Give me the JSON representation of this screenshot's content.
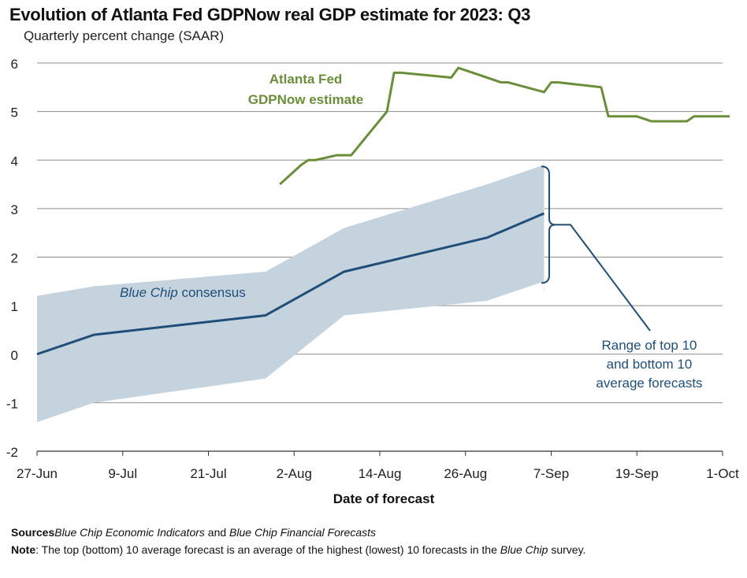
{
  "title": "Evolution of Atlanta Fed GDPNow real GDP estimate for 2023: Q3",
  "subtitle": "Quarterly percent change (SAAR)",
  "chart_data": {
    "type": "line",
    "xlabel": "Date of forecast",
    "ylim": [
      -2,
      6
    ],
    "yticks": [
      -2,
      -1,
      0,
      1,
      2,
      3,
      4,
      5,
      6
    ],
    "xticks": [
      "27-Jun",
      "9-Jul",
      "21-Jul",
      "2-Aug",
      "14-Aug",
      "26-Aug",
      "7-Sep",
      "19-Sep",
      "1-Oct"
    ],
    "xlim_days": [
      0,
      96
    ],
    "grid": true,
    "series": [
      {
        "name": "Atlanta Fed GDPNow estimate",
        "label_lines": [
          "Atlanta Fed",
          "GDPNow estimate"
        ],
        "color": "#6b8e3a",
        "points": [
          [
            "31-Jul",
            3.5
          ],
          [
            "3-Aug",
            3.9
          ],
          [
            "4-Aug",
            4.0
          ],
          [
            "5-Aug",
            4.0
          ],
          [
            "8-Aug",
            4.1
          ],
          [
            "10-Aug",
            4.1
          ],
          [
            "15-Aug",
            5.0
          ],
          [
            "16-Aug",
            5.8
          ],
          [
            "17-Aug",
            5.8
          ],
          [
            "24-Aug",
            5.7
          ],
          [
            "25-Aug",
            5.9
          ],
          [
            "31-Aug",
            5.6
          ],
          [
            "1-Sep",
            5.6
          ],
          [
            "6-Sep",
            5.4
          ],
          [
            "7-Sep",
            5.6
          ],
          [
            "8-Sep",
            5.6
          ],
          [
            "14-Sep",
            5.5
          ],
          [
            "15-Sep",
            4.9
          ],
          [
            "19-Sep",
            4.9
          ],
          [
            "21-Sep",
            4.8
          ],
          [
            "26-Sep",
            4.8
          ],
          [
            "27-Sep",
            4.9
          ],
          [
            "2-Oct",
            4.9
          ]
        ]
      },
      {
        "name": "Blue Chip consensus",
        "label_italic": "Blue Chip",
        "label_rest": " consensus",
        "color": "#1f4e79",
        "points": [
          [
            "27-Jun",
            0.0
          ],
          [
            "5-Jul",
            0.4
          ],
          [
            "29-Jul",
            0.8
          ],
          [
            "9-Aug",
            1.7
          ],
          [
            "29-Aug",
            2.4
          ],
          [
            "6-Sep",
            2.9
          ]
        ]
      }
    ],
    "band": {
      "name": "Range of top 10 and bottom 10 average forecasts",
      "label_lines": [
        "Range of top 10",
        "and bottom 10",
        "average forecasts"
      ],
      "color": "#c5d3de",
      "upper": [
        [
          "27-Jun",
          1.2
        ],
        [
          "5-Jul",
          1.4
        ],
        [
          "29-Jul",
          1.7
        ],
        [
          "9-Aug",
          2.6
        ],
        [
          "29-Aug",
          3.5
        ],
        [
          "6-Sep",
          3.9
        ]
      ],
      "lower": [
        [
          "27-Jun",
          -1.4
        ],
        [
          "5-Jul",
          -1.0
        ],
        [
          "29-Jul",
          -0.5
        ],
        [
          "9-Aug",
          0.8
        ],
        [
          "29-Aug",
          1.1
        ],
        [
          "6-Sep",
          1.5
        ]
      ]
    }
  },
  "sources": {
    "label": "Sources",
    "part1": "Blue Chip Economic Indicators",
    "part2": " and ",
    "part3": "Blue Chip Financial Forecasts"
  },
  "note": {
    "label": "Note",
    "part1": ": The top (bottom) 10 average forecast is an average of the highest (lowest) 10 forecasts in the ",
    "part2": "Blue Chip",
    "part3": " survey."
  }
}
